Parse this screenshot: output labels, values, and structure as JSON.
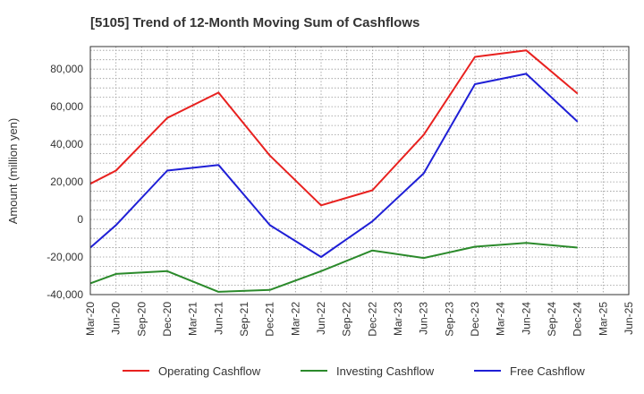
{
  "chart_data": {
    "type": "line",
    "title": "[5105]  Trend of 12-Month Moving Sum of Cashflows",
    "xlabel": "",
    "ylabel": "Amount (million yen)",
    "ylim": [
      -40000,
      92000
    ],
    "yticks": [
      80000,
      60000,
      40000,
      20000,
      0,
      -20000,
      -40000
    ],
    "ytick_labels": [
      "80,000",
      "60,000",
      "40,000",
      "20,000",
      "0",
      "-20,000",
      "-40,000"
    ],
    "categories": [
      "Mar-20",
      "Jun-20",
      "Sep-20",
      "Dec-20",
      "Mar-21",
      "Jun-21",
      "Sep-21",
      "Dec-21",
      "Mar-22",
      "Jun-22",
      "Sep-22",
      "Dec-22",
      "Mar-23",
      "Jun-23",
      "Sep-23",
      "Dec-23",
      "Mar-24",
      "Jun-24",
      "Sep-24",
      "Dec-24",
      "Mar-25",
      "Jun-25"
    ],
    "grid": true,
    "legend_position": "bottom",
    "series": [
      {
        "name": "Operating Cashflow",
        "color": "#e8211f",
        "values": [
          19000,
          26000,
          null,
          54000,
          null,
          67500,
          null,
          34000,
          null,
          7500,
          null,
          15500,
          null,
          45000,
          null,
          86500,
          null,
          90000,
          null,
          67000,
          null,
          null
        ]
      },
      {
        "name": "Investing Cashflow",
        "color": "#2b8a2b",
        "values": [
          -34000,
          -29000,
          null,
          -27500,
          null,
          -38500,
          null,
          -37500,
          null,
          -27500,
          null,
          -16500,
          null,
          -20500,
          null,
          -14500,
          null,
          -12500,
          null,
          -15000,
          null,
          null
        ]
      },
      {
        "name": "Free Cashflow",
        "color": "#1f1fd6",
        "values": [
          -15000,
          -3000,
          null,
          26000,
          null,
          29000,
          null,
          -3000,
          null,
          -20000,
          null,
          -1000,
          null,
          24500,
          null,
          72000,
          null,
          77500,
          null,
          52000,
          null,
          null
        ]
      }
    ]
  }
}
